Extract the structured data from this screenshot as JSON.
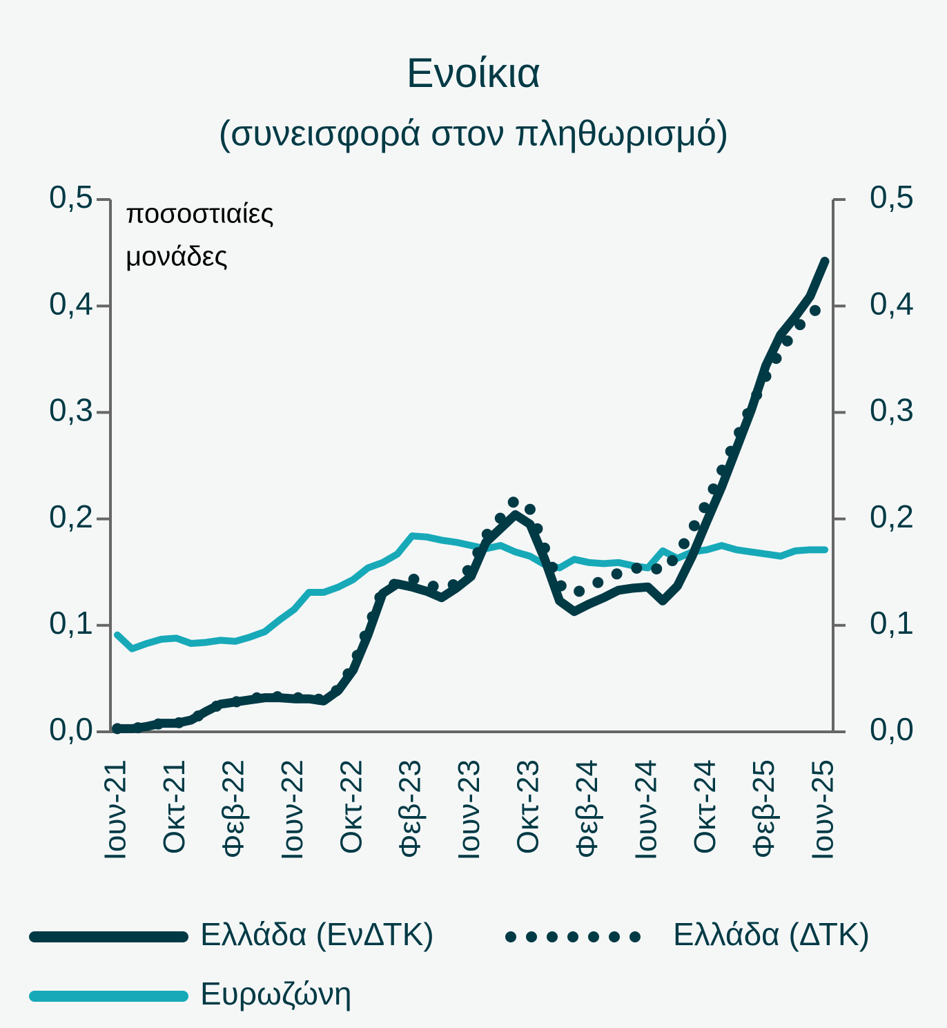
{
  "chart_data": {
    "type": "line",
    "title": "Ενοίκια",
    "subtitle": "(συνεισφορά στον πληθωρισμό)",
    "annotations": [
      "ποσοστιαίες",
      "μονάδες"
    ],
    "categories": [
      "Ιουν-21",
      null,
      null,
      null,
      "Οκτ-21",
      null,
      null,
      null,
      "Φεβ-22",
      null,
      null,
      null,
      "Ιουν-22",
      null,
      null,
      null,
      "Οκτ-22",
      null,
      null,
      null,
      "Φεβ-23",
      null,
      null,
      null,
      "Ιουν-23",
      null,
      null,
      null,
      "Οκτ-23",
      null,
      null,
      null,
      "Φεβ-24",
      null,
      null,
      null,
      "Ιουν-24",
      null,
      null,
      null,
      "Οκτ-24",
      null,
      null,
      null,
      "Φεβ-25",
      null,
      null,
      null,
      "Ιουν-25"
    ],
    "series": [
      {
        "name": "Ελλάδα (ΕνΔΤΚ)",
        "color": "#003a45",
        "style": "solid",
        "values": [
          0.003,
          0.003,
          0.005,
          0.008,
          0.008,
          0.011,
          0.019,
          0.026,
          0.028,
          0.03,
          0.032,
          0.032,
          0.031,
          0.031,
          0.029,
          0.039,
          0.058,
          0.091,
          0.13,
          0.139,
          0.136,
          0.132,
          0.126,
          0.135,
          0.146,
          0.178,
          0.191,
          0.204,
          0.195,
          0.162,
          0.123,
          0.113,
          0.12,
          0.126,
          0.133,
          0.135,
          0.136,
          0.123,
          0.137,
          0.165,
          0.198,
          0.23,
          0.266,
          0.302,
          0.344,
          0.373,
          0.39,
          0.409,
          0.442
        ]
      },
      {
        "name": "Ελλάδα (ΔΤΚ)",
        "color": "#003a45",
        "style": "dotted",
        "values": [
          0.003,
          0.003,
          0.005,
          0.008,
          0.008,
          0.011,
          0.019,
          0.026,
          0.028,
          0.031,
          0.033,
          0.033,
          0.032,
          0.032,
          0.03,
          0.04,
          0.062,
          0.097,
          0.133,
          0.14,
          0.144,
          0.138,
          0.135,
          0.139,
          0.155,
          0.184,
          0.201,
          0.218,
          0.209,
          0.172,
          0.138,
          0.13,
          0.136,
          0.143,
          0.149,
          0.153,
          0.156,
          0.151,
          0.166,
          0.19,
          0.215,
          0.245,
          0.275,
          0.306,
          0.334,
          0.358,
          0.378,
          0.392,
          0.403
        ]
      },
      {
        "name": "Ευρωζώνη",
        "color": "#17a9b8",
        "style": "solid",
        "values": [
          0.091,
          0.078,
          0.083,
          0.087,
          0.088,
          0.083,
          0.084,
          0.086,
          0.085,
          0.089,
          0.094,
          0.105,
          0.115,
          0.131,
          0.131,
          0.136,
          0.143,
          0.154,
          0.159,
          0.167,
          0.184,
          0.183,
          0.18,
          0.178,
          0.175,
          0.172,
          0.175,
          0.169,
          0.165,
          0.157,
          0.154,
          0.162,
          0.159,
          0.158,
          0.159,
          0.156,
          0.154,
          0.17,
          0.163,
          0.169,
          0.171,
          0.175,
          0.171,
          0.169,
          0.167,
          0.165,
          0.17,
          0.171,
          0.171
        ]
      }
    ],
    "ylim": [
      0,
      0.5
    ],
    "yticks": [
      {
        "value": 0,
        "label": "0,0"
      },
      {
        "value": 0.1,
        "label": "0,1"
      },
      {
        "value": 0.2,
        "label": "0,2"
      },
      {
        "value": 0.3,
        "label": "0,3"
      },
      {
        "value": 0.4,
        "label": "0,4"
      },
      {
        "value": 0.5,
        "label": "0,5"
      }
    ],
    "y2lim": [
      0,
      0.5
    ],
    "y2ticks": [
      {
        "value": 0,
        "label": "0,0"
      },
      {
        "value": 0.1,
        "label": "0,1"
      },
      {
        "value": 0.2,
        "label": "0,2"
      },
      {
        "value": 0.3,
        "label": "0,3"
      },
      {
        "value": 0.4,
        "label": "0,4"
      },
      {
        "value": 0.5,
        "label": "0,5"
      }
    ],
    "grid": false,
    "legend": "bottom"
  }
}
